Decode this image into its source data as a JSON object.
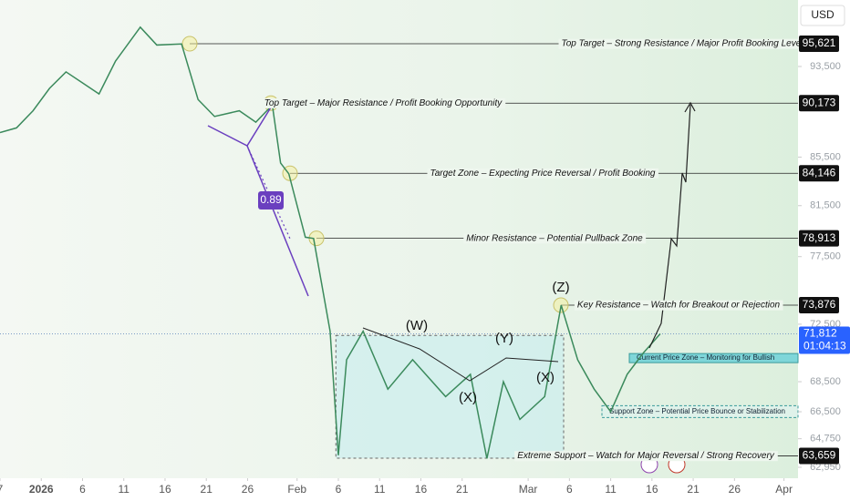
{
  "chart_data": {
    "type": "line",
    "currency": "USD",
    "x": [
      -4,
      -2,
      0,
      2,
      4,
      6,
      8,
      10,
      13,
      15,
      18,
      20,
      22,
      25,
      27,
      29,
      30,
      31,
      33,
      34,
      36,
      37,
      38,
      40,
      43,
      46,
      50,
      53,
      55,
      57,
      59,
      62,
      64,
      66,
      68,
      70,
      72,
      74,
      76
    ],
    "series": [
      {
        "color": "#3b8a5c",
        "values": [
          87600,
          88000,
          89500,
          91500,
          93000,
          92000,
          91000,
          94000,
          97200,
          95500,
          95600,
          90500,
          89000,
          89500,
          88500,
          90000,
          85000,
          84100,
          79000,
          78900,
          72000,
          63700,
          70000,
          72000,
          68000,
          70000,
          67500,
          69000,
          63500,
          68500,
          66000,
          67500,
          73876,
          70000,
          68000,
          66500,
          69000,
          70500,
          71812
        ]
      }
    ],
    "xlim": [
      -4,
      92.7
    ],
    "xticks": [
      {
        "value": -4,
        "label": "7"
      },
      {
        "value": 1,
        "label": "2026"
      },
      6,
      11,
      16,
      21,
      26,
      {
        "value": 32,
        "label": "Feb"
      },
      {
        "value": 37,
        "label": "6"
      },
      {
        "value": 42,
        "label": "11"
      },
      {
        "value": 47,
        "label": "16"
      },
      {
        "value": 52,
        "label": "21"
      },
      {
        "value": 60,
        "label": "Mar"
      },
      {
        "value": 65,
        "label": "6"
      },
      {
        "value": 70,
        "label": "11"
      },
      {
        "value": 75,
        "label": "16"
      },
      {
        "value": 80,
        "label": "21"
      },
      {
        "value": 85,
        "label": "26"
      },
      {
        "value": 91,
        "label": "Apr"
      }
    ],
    "log_y": true,
    "ylim": [
      62275,
      99840
    ],
    "yticks": [
      {
        "value": 93500,
        "label": "93,500"
      },
      {
        "value": 85500,
        "label": "85,500"
      },
      {
        "value": 81500,
        "label": "81,500"
      },
      {
        "value": 77500,
        "label": "77,500"
      },
      {
        "value": 72500,
        "label": "72,500"
      },
      {
        "value": 68500,
        "label": "68,500"
      },
      {
        "value": 66500,
        "label": "66,500"
      },
      {
        "value": 64750,
        "label": "64,750"
      },
      {
        "value": 62950,
        "label": "62,950"
      }
    ],
    "levels": [
      {
        "label": "Top Target – Strong Resistance / Major Profit Booking Level",
        "value": 95621,
        "value_label": "95,621"
      },
      {
        "label": "Top Target – Major Resistance / Profit Booking Opportunity",
        "value": 90173,
        "value_label": "90,173"
      },
      {
        "label": "Target Zone – Expecting Price Reversal / Profit Booking",
        "value": 84146,
        "value_label": "84,146"
      },
      {
        "label": "Minor Resistance – Potential Pullback Zone",
        "value": 78913,
        "value_label": "78,913"
      },
      {
        "label": "Key Resistance – Watch for Breakout or Rejection",
        "value": 73876,
        "value_label": "73,876"
      },
      {
        "label": "Extreme Support – Watch for Major Reversal / Strong Recovery",
        "value": 63659,
        "value_label": "63,659"
      }
    ],
    "current_price": {
      "value": 71812,
      "value_label": "71,812",
      "countdown": "01:04:13"
    },
    "zones": [
      {
        "label": "Current Price Zone – Monitoring for Bullish",
        "range": [
          69800,
          70430
        ]
      },
      {
        "label": "Support Zone – Potential Price Bounce or Stabilization",
        "range": [
          66120,
          66900
        ]
      }
    ],
    "range_box": {
      "x": [
        36.7,
        64.3
      ],
      "y": [
        63520,
        71700
      ]
    },
    "wave_labels": [
      "(W)",
      "(X)",
      "(Y)",
      "(X)",
      "(Z)"
    ],
    "fib_ratio": 0.89
  }
}
